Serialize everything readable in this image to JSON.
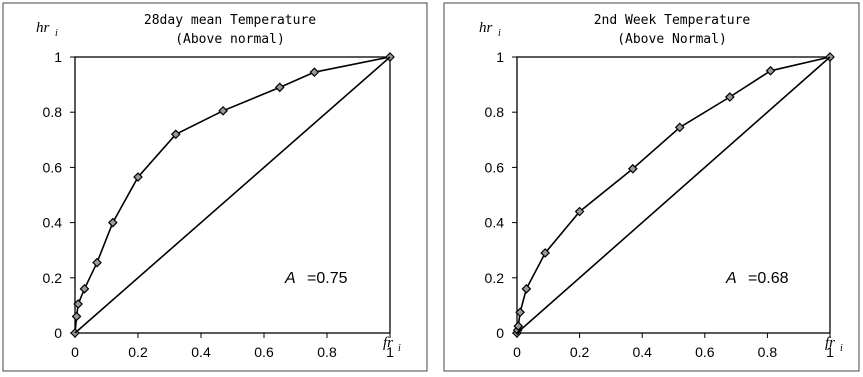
{
  "chart_data": [
    {
      "type": "line",
      "title": "28day mean Temperature",
      "subtitle": "(Above normal)",
      "xlabel": "fr",
      "xlabel_sub": "i",
      "ylabel": "hr",
      "ylabel_sub": "i",
      "xlim": [
        0,
        1
      ],
      "ylim": [
        0,
        1
      ],
      "x_ticks": [
        "0",
        "0.2",
        "0.4",
        "0.6",
        "0.8",
        "1"
      ],
      "y_ticks": [
        "0",
        "0.2",
        "0.4",
        "0.6",
        "0.8",
        "1"
      ],
      "grid": false,
      "annotation": {
        "symbol": "A",
        "text": "=0.75"
      },
      "series": [
        {
          "x": [
            0,
            0.005,
            0.01,
            0.03,
            0.07,
            0.12,
            0.2,
            0.32,
            0.47,
            0.65,
            0.76,
            1
          ],
          "y": [
            0,
            0.06,
            0.105,
            0.16,
            0.255,
            0.4,
            0.565,
            0.72,
            0.805,
            0.89,
            0.945,
            1
          ],
          "marker": "diamond",
          "color": "#000000"
        },
        {
          "x": [
            0,
            1
          ],
          "y": [
            0,
            1
          ],
          "marker": "none",
          "color": "#000000"
        }
      ]
    },
    {
      "type": "line",
      "title": "2nd Week Temperature",
      "subtitle": "(Above Normal)",
      "xlabel": "fr",
      "xlabel_sub": "i",
      "ylabel": "hr",
      "ylabel_sub": "i",
      "xlim": [
        0,
        1
      ],
      "ylim": [
        0,
        1
      ],
      "x_ticks": [
        "0",
        "0.2",
        "0.4",
        "0.6",
        "0.8",
        "1"
      ],
      "y_ticks": [
        "0",
        "0.2",
        "0.4",
        "0.6",
        "0.8",
        "1"
      ],
      "grid": false,
      "annotation": {
        "symbol": "A",
        "text": "=0.68"
      },
      "series": [
        {
          "x": [
            0,
            0.002,
            0.004,
            0.01,
            0.03,
            0.09,
            0.2,
            0.37,
            0.52,
            0.68,
            0.81,
            1
          ],
          "y": [
            0,
            0.01,
            0.025,
            0.075,
            0.16,
            0.29,
            0.44,
            0.595,
            0.745,
            0.855,
            0.95,
            1
          ],
          "marker": "diamond",
          "color": "#000000"
        },
        {
          "x": [
            0,
            1
          ],
          "y": [
            0,
            1
          ],
          "marker": "none",
          "color": "#000000"
        }
      ]
    }
  ]
}
